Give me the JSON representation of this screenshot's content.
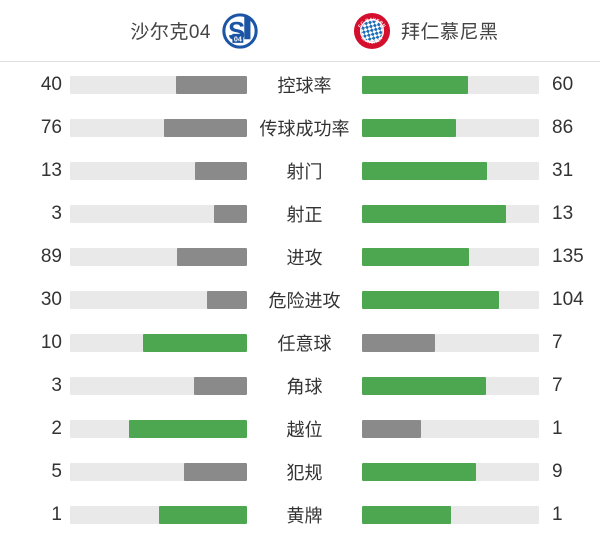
{
  "header": {
    "home_name": "沙尔克04",
    "away_name": "拜仁慕尼黑",
    "home_logo_icon": "schalke-04-crest",
    "away_logo_icon": "bayern-munich-crest"
  },
  "colors": {
    "leading_bar": "#4da751",
    "trailing_bar": "#8a8a8a",
    "track": "#e9e9e9",
    "text": "#333333",
    "schalke_blue": "#1c55a5",
    "bayern_red": "#d40f2e",
    "bayern_blue": "#1e6fb8"
  },
  "stats": [
    {
      "label": "控球率",
      "home": 40,
      "away": 60
    },
    {
      "label": "传球成功率",
      "home": 76,
      "away": 86
    },
    {
      "label": "射门",
      "home": 13,
      "away": 31
    },
    {
      "label": "射正",
      "home": 3,
      "away": 13
    },
    {
      "label": "进攻",
      "home": 89,
      "away": 135
    },
    {
      "label": "危险进攻",
      "home": 30,
      "away": 104
    },
    {
      "label": "任意球",
      "home": 10,
      "away": 7
    },
    {
      "label": "角球",
      "home": 3,
      "away": 7
    },
    {
      "label": "越位",
      "home": 2,
      "away": 1
    },
    {
      "label": "犯规",
      "home": 5,
      "away": 9
    },
    {
      "label": "黄牌",
      "home": 1,
      "away": 1
    }
  ]
}
